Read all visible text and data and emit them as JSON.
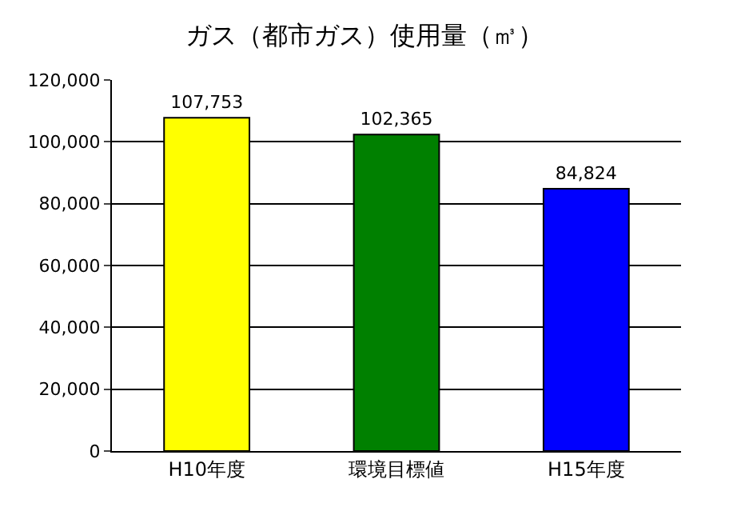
{
  "chart_data": {
    "type": "bar",
    "title": "ガス（都市ガス）使用量（㎥）",
    "categories": [
      "H10年度",
      "環境目標値",
      "H15年度"
    ],
    "values": [
      107753,
      102365,
      84824
    ],
    "colors": [
      "#ffff00",
      "#008000",
      "#0000ff"
    ],
    "value_labels": [
      "107,753",
      "102,365",
      "84,824"
    ],
    "ylim": [
      0,
      120000
    ],
    "yticks": [
      {
        "value": 0,
        "label": "0"
      },
      {
        "value": 20000,
        "label": "20,000"
      },
      {
        "value": 40000,
        "label": "40,000"
      },
      {
        "value": 60000,
        "label": "60,000"
      },
      {
        "value": 80000,
        "label": "80,000"
      },
      {
        "value": 100000,
        "label": "100,000"
      },
      {
        "value": 120000,
        "label": "120,000"
      }
    ],
    "grid": "y"
  }
}
